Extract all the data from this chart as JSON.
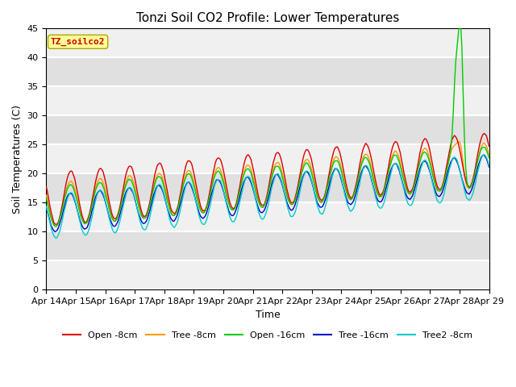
{
  "title": "Tonzi Soil CO2 Profile: Lower Temperatures",
  "xlabel": "Time",
  "ylabel": "Soil Temperatures (C)",
  "ylim": [
    0,
    45
  ],
  "yticks": [
    0,
    5,
    10,
    15,
    20,
    25,
    30,
    35,
    40,
    45
  ],
  "xtick_labels": [
    "Apr 14",
    "Apr 15",
    "Apr 16",
    "Apr 17",
    "Apr 18",
    "Apr 19",
    "Apr 20",
    "Apr 21",
    "Apr 22",
    "Apr 23",
    "Apr 24",
    "Apr 25",
    "Apr 26",
    "Apr 27",
    "Apr 28",
    "Apr 29"
  ],
  "series": [
    {
      "label": "Open -8cm",
      "color": "#dd0000"
    },
    {
      "label": "Tree -8cm",
      "color": "#ff9900"
    },
    {
      "label": "Open -16cm",
      "color": "#00cc00"
    },
    {
      "label": "Tree -16cm",
      "color": "#0000cc"
    },
    {
      "label": "Tree2 -8cm",
      "color": "#00cccc"
    }
  ],
  "annotation_text": "TZ_soilco2",
  "annotation_color": "#cc0000",
  "annotation_bg": "#ffff99",
  "background_color": "#ffffff",
  "title_fontsize": 11,
  "label_fontsize": 9,
  "tick_fontsize": 8
}
